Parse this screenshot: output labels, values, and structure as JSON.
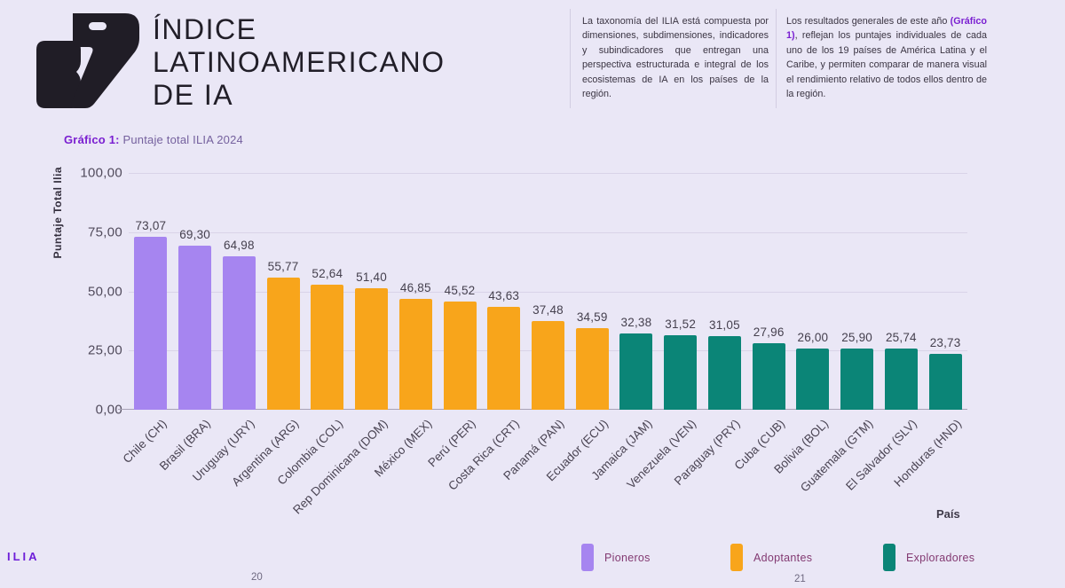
{
  "page": {
    "background": "#eae7f6",
    "accent_purple": "#7a1fd1"
  },
  "header": {
    "title_lines": [
      "ÍNDICE",
      "LATINOAMERICANO",
      "DE IA"
    ],
    "intro_left": "La taxonomía del ILIA está compuesta por dimensiones, subdimensiones, indicadores y subindicadores que entregan una perspectiva estructurada e integral de los ecosistemas de IA en los países de la región.",
    "intro_right_pre": "Los resultados generales de este año ",
    "intro_right_bold": "(Gráfico 1)",
    "intro_right_post": ", reflejan los puntajes individuales de cada uno de los 19 países de América Latina y el Caribe, y permiten comparar de manera visual el rendimiento relativo de todos ellos dentro de la región."
  },
  "chart_data": {
    "type": "bar",
    "title_prefix": "Gráfico 1:",
    "title": "Puntaje total ILIA 2024",
    "ylabel": "Puntaje Total Ilia",
    "xlabel": "País",
    "ylim": [
      0,
      100
    ],
    "grid": true,
    "legend_position": "bottom",
    "ytick_labels": [
      "100,00",
      "75,00",
      "50,00",
      "25,00",
      "0,00"
    ],
    "ytick_values": [
      100,
      75,
      50,
      25,
      0
    ],
    "categories": [
      "Chile (CH)",
      "Brasil (BRA)",
      "Uruguay (URY)",
      "Argentina (ARG)",
      "Colombia (COL)",
      "Rep Dominicana (DOM)",
      "México (MEX)",
      "Perú (PER)",
      "Costa Rica (CRT)",
      "Panamá (PAN)",
      "Ecuador (ECU)",
      "Jamaica (JAM)",
      "Venezuela (VEN)",
      "Paraguay (PRY)",
      "Cuba (CUB)",
      "Bolivia (BOL)",
      "Guatemala (GTM)",
      "El Salvador (SLV)",
      "Honduras (HND)"
    ],
    "values": [
      73.07,
      69.3,
      64.98,
      55.77,
      52.64,
      51.4,
      46.85,
      45.52,
      43.63,
      37.48,
      34.59,
      32.38,
      31.52,
      31.05,
      27.96,
      26.0,
      25.9,
      25.74,
      23.73
    ],
    "value_labels": [
      "73,07",
      "69,30",
      "64,98",
      "55,77",
      "52,64",
      "51,40",
      "46,85",
      "45,52",
      "43,63",
      "37,48",
      "34,59",
      "32,38",
      "31,52",
      "31,05",
      "27,96",
      "26,00",
      "25,90",
      "25,74",
      "23,73"
    ],
    "groups": [
      "pioneros",
      "pioneros",
      "pioneros",
      "adoptantes",
      "adoptantes",
      "adoptantes",
      "adoptantes",
      "adoptantes",
      "adoptantes",
      "adoptantes",
      "adoptantes",
      "exploradores",
      "exploradores",
      "exploradores",
      "exploradores",
      "exploradores",
      "exploradores",
      "exploradores",
      "exploradores"
    ],
    "group_colors": {
      "pioneros": "#a685f0",
      "adoptantes": "#f8a51b",
      "exploradores": "#0b8577"
    },
    "legend": [
      {
        "label": "Pioneros",
        "color": "#a685f0"
      },
      {
        "label": "Adoptantes",
        "color": "#f8a51b"
      },
      {
        "label": "Exploradores",
        "color": "#0b8577"
      }
    ]
  },
  "footer": {
    "brand": "ILIA",
    "page_left": "20",
    "page_right": "21"
  }
}
